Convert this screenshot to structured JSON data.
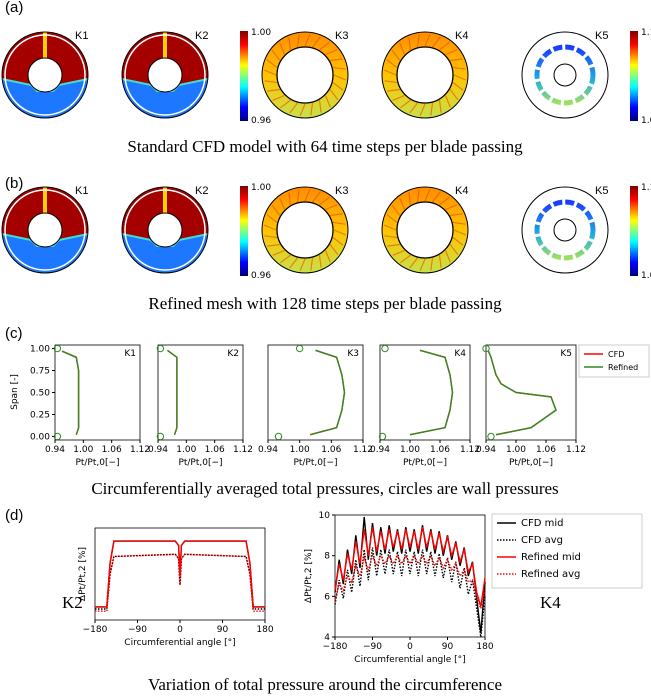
{
  "panels": [
    {
      "label": "(a)",
      "caption": "Standard CFD model with 64 time steps per blade passing",
      "contours": [
        "K1",
        "K2",
        "K3",
        "K4",
        "K5"
      ],
      "colorbars": [
        [
          "1.00",
          "0.96"
        ],
        [
          "1.12",
          "1.00"
        ]
      ]
    },
    {
      "label": "(b)",
      "caption": "Refined mesh with 128 time steps per blade passing",
      "contours": [
        "K1",
        "K2",
        "K3",
        "K4",
        "K5"
      ],
      "colorbars": [
        [
          "1.00",
          "0.96"
        ],
        [
          "1.12",
          "1.00"
        ]
      ]
    }
  ],
  "panel_c": {
    "label": "(c)",
    "caption": "Circumferentially averaged total pressures, circles are wall pressures",
    "ylabel": "Span [-]"
  },
  "panel_d": {
    "label": "(d)",
    "caption": "Variation of total pressure around the circumference"
  },
  "chart_data": [
    {
      "type": "line",
      "orientation": "horizontal",
      "title": "K1",
      "xlabel": "Pt/Pt,0[−]",
      "xlim": [
        0.94,
        1.12
      ],
      "xticks": [
        0.94,
        {
          "value": 1.0,
          "label": "1.00"
        },
        1.06,
        1.12
      ],
      "ylim": [
        -0.04,
        1.04
      ],
      "yticks": [
        {
          "value": 0,
          "label": "0.00"
        },
        0.25,
        {
          "value": 0.5,
          "label": "0.50"
        },
        0.75,
        {
          "value": 1.0,
          "label": "1.00"
        }
      ],
      "span": [
        0.02,
        0.1,
        0.25,
        0.5,
        0.75,
        0.9,
        0.97
      ],
      "series": [
        {
          "name": "CFD",
          "color": "#ff0000",
          "values": [
            0.985,
            0.99,
            0.99,
            0.99,
            0.99,
            0.985,
            0.955
          ]
        },
        {
          "name": "Refined",
          "color": "#2e8b22",
          "values": [
            0.985,
            0.99,
            0.99,
            0.99,
            0.99,
            0.985,
            0.955
          ]
        }
      ],
      "wall": {
        "span": [
          0,
          1
        ],
        "values": [
          0.945,
          0.945
        ]
      }
    },
    {
      "type": "line",
      "orientation": "horizontal",
      "title": "K2",
      "xlabel": "Pt/Pt,0[−]",
      "xlim": [
        0.94,
        1.12
      ],
      "xticks": [
        0.94,
        {
          "value": 1.0,
          "label": "1.00"
        },
        1.06,
        1.12
      ],
      "ylim": [
        -0.04,
        1.04
      ],
      "span": [
        0.02,
        0.1,
        0.5,
        0.9,
        0.98
      ],
      "series": [
        {
          "name": "CFD",
          "color": "#ff0000",
          "values": [
            0.975,
            0.98,
            0.98,
            0.98,
            0.96
          ]
        },
        {
          "name": "Refined",
          "color": "#2e8b22",
          "values": [
            0.975,
            0.98,
            0.98,
            0.98,
            0.96
          ]
        }
      ],
      "wall": {
        "span": [
          0,
          1
        ],
        "values": [
          0.945,
          0.945
        ]
      }
    },
    {
      "type": "line",
      "orientation": "horizontal",
      "title": "K3",
      "xlabel": "Pt/Pt,0[−]",
      "xlim": [
        0.94,
        1.12
      ],
      "xticks": [
        0.94,
        {
          "value": 1.0,
          "label": "1.00"
        },
        1.06,
        1.12
      ],
      "ylim": [
        -0.04,
        1.04
      ],
      "span": [
        0.02,
        0.1,
        0.3,
        0.5,
        0.7,
        0.9,
        0.98
      ],
      "series": [
        {
          "name": "CFD",
          "color": "#ff0000",
          "values": [
            1.02,
            1.07,
            1.08,
            1.085,
            1.08,
            1.07,
            1.03
          ]
        },
        {
          "name": "Refined",
          "color": "#2e8b22",
          "values": [
            1.02,
            1.07,
            1.08,
            1.085,
            1.08,
            1.07,
            1.03
          ]
        }
      ],
      "wall": {
        "span": [
          0,
          1
        ],
        "values": [
          0.96,
          1.0
        ]
      }
    },
    {
      "type": "line",
      "orientation": "horizontal",
      "title": "K4",
      "xlabel": "Pt/Pt,0[−]",
      "xlim": [
        0.94,
        1.12
      ],
      "xticks": [
        0.94,
        {
          "value": 1.0,
          "label": "1.00"
        },
        1.06,
        1.12
      ],
      "ylim": [
        -0.04,
        1.04
      ],
      "span": [
        0.02,
        0.1,
        0.3,
        0.5,
        0.7,
        0.9,
        0.98
      ],
      "series": [
        {
          "name": "CFD",
          "color": "#ff0000",
          "values": [
            1.0,
            1.07,
            1.08,
            1.085,
            1.08,
            1.07,
            1.02
          ]
        },
        {
          "name": "Refined",
          "color": "#2e8b22",
          "values": [
            1.0,
            1.07,
            1.08,
            1.085,
            1.08,
            1.07,
            1.02
          ]
        }
      ],
      "wall": {
        "span": [
          0,
          1
        ],
        "values": [
          0.945,
          0.95
        ]
      }
    },
    {
      "type": "line",
      "orientation": "horizontal",
      "title": "K5",
      "xlabel": "Pt/Pt,0[−]",
      "xlim": [
        0.94,
        1.12
      ],
      "xticks": [
        0.94,
        {
          "value": 1.0,
          "label": "1.00"
        },
        1.06,
        1.12
      ],
      "ylim": [
        -0.04,
        1.04
      ],
      "legend": "right",
      "span": [
        0.02,
        0.1,
        0.3,
        0.45,
        0.5,
        0.6,
        0.7,
        0.8,
        0.9,
        0.97
      ],
      "series": [
        {
          "name": "CFD",
          "color": "#ff0000",
          "values": [
            0.96,
            1.03,
            1.08,
            1.07,
            1.0,
            0.97,
            0.96,
            0.955,
            0.95,
            0.945
          ]
        },
        {
          "name": "Refined",
          "color": "#2e8b22",
          "values": [
            0.96,
            1.03,
            1.08,
            1.07,
            1.0,
            0.97,
            0.96,
            0.955,
            0.95,
            0.945
          ]
        }
      ],
      "wall": {
        "span": [
          0,
          1
        ],
        "values": [
          0.95,
          0.94
        ]
      }
    },
    {
      "type": "line",
      "annotation": "K2",
      "xlabel": "Circumferential angle [°]",
      "ylabel": "ΔPt/Pt,2 [%]",
      "xlim": [
        -180,
        180
      ],
      "xticks": [
        {
          "value": -180,
          "label": "−180"
        },
        {
          "value": -90,
          "label": "−90"
        },
        0,
        90,
        180
      ],
      "ylim": [
        -3.6,
        0.6
      ],
      "x": [
        -180,
        -155,
        -148,
        -140,
        -10,
        -3,
        0,
        3,
        10,
        140,
        148,
        155,
        180
      ],
      "series": [
        {
          "name": "CFD mid",
          "color": "#000000",
          "dash": false,
          "values": [
            -3,
            -3,
            -1,
            0,
            0,
            -0.2,
            -1.5,
            -0.2,
            0,
            0,
            -1,
            -3,
            -3
          ]
        },
        {
          "name": "CFD avg",
          "color": "#000000",
          "dash": true,
          "values": [
            -3.1,
            -3.1,
            -1.5,
            -0.7,
            -0.6,
            -0.8,
            -2.0,
            -0.8,
            -0.6,
            -0.7,
            -1.5,
            -3.1,
            -3.1
          ]
        },
        {
          "name": "Refined mid",
          "color": "#ff0000",
          "dash": false,
          "values": [
            -3,
            -3,
            -1,
            0,
            0,
            -0.2,
            -1.6,
            -0.2,
            0,
            0,
            -1,
            -3,
            -3
          ]
        },
        {
          "name": "Refined avg",
          "color": "#ff0000",
          "dash": true,
          "values": [
            -3.2,
            -3.2,
            -1.5,
            -0.7,
            -0.6,
            -0.8,
            -2.0,
            -0.8,
            -0.6,
            -0.7,
            -1.5,
            -3.2,
            -3.2
          ]
        }
      ]
    },
    {
      "type": "line",
      "annotation": "K4",
      "legend": "right",
      "xlabel": "Circumferential angle [°]",
      "ylabel": "ΔPt/Pt,2 [%]",
      "xlim": [
        -180,
        180
      ],
      "xticks": [
        {
          "value": -180,
          "label": "−180"
        },
        {
          "value": -90,
          "label": "−90"
        },
        0,
        90,
        180
      ],
      "ylim": [
        4,
        10
      ],
      "yticks": [
        4,
        6,
        8,
        10
      ],
      "x": [
        -180,
        -170,
        -160,
        -150,
        -140,
        -130,
        -120,
        -110,
        -100,
        -90,
        -80,
        -70,
        -60,
        -50,
        -40,
        -30,
        -20,
        -10,
        0,
        10,
        20,
        30,
        40,
        50,
        60,
        70,
        80,
        90,
        100,
        110,
        120,
        130,
        140,
        150,
        160,
        170,
        180
      ],
      "series": [
        {
          "name": "CFD mid",
          "color": "#000000",
          "dash": false,
          "values": [
            6.2,
            7.8,
            6.6,
            8.3,
            7.1,
            9.0,
            7.4,
            9.9,
            7.8,
            9.6,
            8.0,
            9.4,
            8.1,
            9.5,
            8.2,
            9.3,
            8.1,
            9.4,
            8.2,
            9.3,
            8.1,
            9.5,
            8.2,
            9.3,
            8.1,
            9.2,
            8.0,
            9.0,
            7.8,
            8.7,
            7.5,
            8.4,
            7.0,
            7.7,
            5.9,
            4.2,
            6.7
          ]
        },
        {
          "name": "CFD avg",
          "color": "#000000",
          "dash": true,
          "values": [
            5.6,
            6.8,
            5.9,
            7.3,
            6.2,
            7.8,
            6.5,
            8.3,
            6.8,
            8.4,
            7.0,
            8.3,
            7.1,
            8.3,
            7.1,
            8.2,
            7.0,
            8.3,
            7.1,
            8.2,
            7.0,
            8.3,
            7.1,
            8.2,
            7.0,
            8.1,
            6.9,
            7.9,
            6.7,
            7.7,
            6.4,
            7.4,
            6.1,
            6.8,
            5.4,
            4.0,
            6.0
          ]
        },
        {
          "name": "Refined mid",
          "color": "#ff0000",
          "dash": false,
          "values": [
            6.3,
            7.6,
            6.8,
            8.1,
            7.3,
            8.7,
            7.6,
            9.3,
            8.0,
            9.4,
            8.2,
            9.2,
            8.3,
            9.3,
            8.4,
            9.2,
            8.3,
            9.3,
            8.4,
            9.2,
            8.3,
            9.4,
            8.4,
            9.2,
            8.3,
            9.1,
            8.2,
            8.9,
            8.0,
            8.6,
            7.7,
            8.3,
            7.2,
            7.6,
            6.2,
            5.5,
            6.9
          ]
        },
        {
          "name": "Refined avg",
          "color": "#ff0000",
          "dash": true,
          "values": [
            5.8,
            6.6,
            6.3,
            7.0,
            6.7,
            7.5,
            7.0,
            7.9,
            7.3,
            8.0,
            7.5,
            8.0,
            7.6,
            8.0,
            7.6,
            8.0,
            7.6,
            8.0,
            7.6,
            8.0,
            7.6,
            8.0,
            7.6,
            8.0,
            7.5,
            7.9,
            7.4,
            7.8,
            7.3,
            7.6,
            7.0,
            7.3,
            6.7,
            6.8,
            6.0,
            5.4,
            6.3
          ]
        }
      ]
    }
  ]
}
